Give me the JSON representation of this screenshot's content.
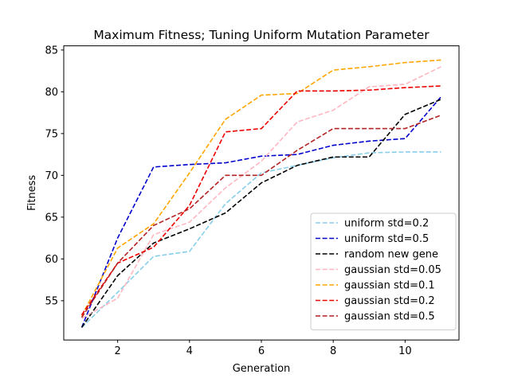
{
  "chart_data": {
    "type": "line",
    "title": "Maximum Fitness; Tuning Uniform Mutation Parameter",
    "xlabel": "Generation",
    "ylabel": "Fitness",
    "xlim": [
      0.5,
      11.5
    ],
    "ylim": [
      50.3,
      85.5
    ],
    "x_ticks": [
      2,
      4,
      6,
      8,
      10
    ],
    "y_ticks": [
      55,
      60,
      65,
      70,
      75,
      80,
      85
    ],
    "grid": false,
    "legend_position": "lower-right",
    "line_style": "dashed",
    "x": [
      1,
      2,
      3,
      4,
      5,
      6,
      7,
      8,
      9,
      10,
      11
    ],
    "series": [
      {
        "name": "uniform std=0.2",
        "color": "#87ceeb",
        "values": [
          51.8,
          56.0,
          60.3,
          60.9,
          66.6,
          70.3,
          71.2,
          72.1,
          72.7,
          72.8,
          72.8
        ]
      },
      {
        "name": "uniform std=0.5",
        "color": "#0000cd",
        "values": [
          51.8,
          62.5,
          71.0,
          71.3,
          71.5,
          72.3,
          72.5,
          73.6,
          74.1,
          74.4,
          79.4
        ]
      },
      {
        "name": "random new gene",
        "color": "#000000",
        "values": [
          51.8,
          58.0,
          61.9,
          63.6,
          65.5,
          69.1,
          71.2,
          72.2,
          72.2,
          77.3,
          79.1
        ]
      },
      {
        "name": "gaussian std=0.05",
        "color": "#ffb6c1",
        "values": [
          52.9,
          55.3,
          62.9,
          64.4,
          68.5,
          71.7,
          76.4,
          77.8,
          80.6,
          80.9,
          83.0
        ]
      },
      {
        "name": "gaussian std=0.1",
        "color": "#ffa500",
        "values": [
          53.2,
          61.3,
          64.2,
          70.3,
          76.7,
          79.6,
          79.8,
          82.6,
          83.0,
          83.5,
          83.8
        ]
      },
      {
        "name": "gaussian std=0.2",
        "color": "#ee0000",
        "values": [
          53.3,
          59.5,
          61.4,
          66.4,
          75.2,
          75.6,
          80.1,
          80.1,
          80.2,
          80.5,
          80.7
        ]
      },
      {
        "name": "gaussian std=0.5",
        "color": "#b22222",
        "values": [
          53.0,
          59.5,
          64.0,
          66.0,
          70.0,
          70.0,
          73.0,
          75.6,
          75.6,
          75.6,
          77.2
        ]
      }
    ]
  }
}
